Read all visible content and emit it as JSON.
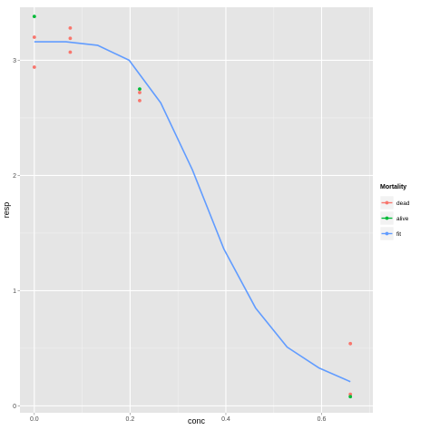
{
  "chart_data": {
    "type": "scatter",
    "xlabel": "conc",
    "ylabel": "resp",
    "xlim": [
      -0.03,
      0.707
    ],
    "ylim": [
      -0.06,
      3.46
    ],
    "x_ticks": [
      0.0,
      0.2,
      0.4,
      0.6
    ],
    "x_tick_labels": [
      "0.0",
      "0.2",
      "0.4",
      "0.6"
    ],
    "y_ticks": [
      0,
      1,
      2,
      3
    ],
    "y_tick_labels": [
      "0",
      "1",
      "2",
      "3"
    ],
    "grid": true,
    "legend": {
      "title": "Mortality",
      "position": "right",
      "entries": [
        {
          "label": "dead",
          "color": "#F8766D"
        },
        {
          "label": "alive",
          "color": "#00BA38"
        },
        {
          "label": "fit",
          "color": "#619CFF"
        }
      ]
    },
    "series": [
      {
        "name": "dead",
        "color": "#F8766D",
        "points": [
          {
            "x": 0.0,
            "y": 3.2
          },
          {
            "x": 0.0,
            "y": 2.94
          },
          {
            "x": 0.075,
            "y": 3.28
          },
          {
            "x": 0.075,
            "y": 3.19
          },
          {
            "x": 0.075,
            "y": 3.07
          },
          {
            "x": 0.22,
            "y": 2.72
          },
          {
            "x": 0.22,
            "y": 2.65
          },
          {
            "x": 0.66,
            "y": 0.54
          },
          {
            "x": 0.66,
            "y": 0.1
          }
        ]
      },
      {
        "name": "alive",
        "color": "#00BA38",
        "points": [
          {
            "x": 0.0,
            "y": 3.38
          },
          {
            "x": 0.22,
            "y": 2.75
          },
          {
            "x": 0.66,
            "y": 0.08
          }
        ]
      },
      {
        "name": "fit",
        "color": "#619CFF",
        "type": "line",
        "points": [
          {
            "x": 0.0,
            "y": 3.16
          },
          {
            "x": 0.066,
            "y": 3.16
          },
          {
            "x": 0.132,
            "y": 3.13
          },
          {
            "x": 0.198,
            "y": 3.0
          },
          {
            "x": 0.264,
            "y": 2.63
          },
          {
            "x": 0.33,
            "y": 2.05
          },
          {
            "x": 0.396,
            "y": 1.36
          },
          {
            "x": 0.462,
            "y": 0.85
          },
          {
            "x": 0.528,
            "y": 0.51
          },
          {
            "x": 0.594,
            "y": 0.33
          },
          {
            "x": 0.66,
            "y": 0.21
          }
        ]
      }
    ]
  }
}
